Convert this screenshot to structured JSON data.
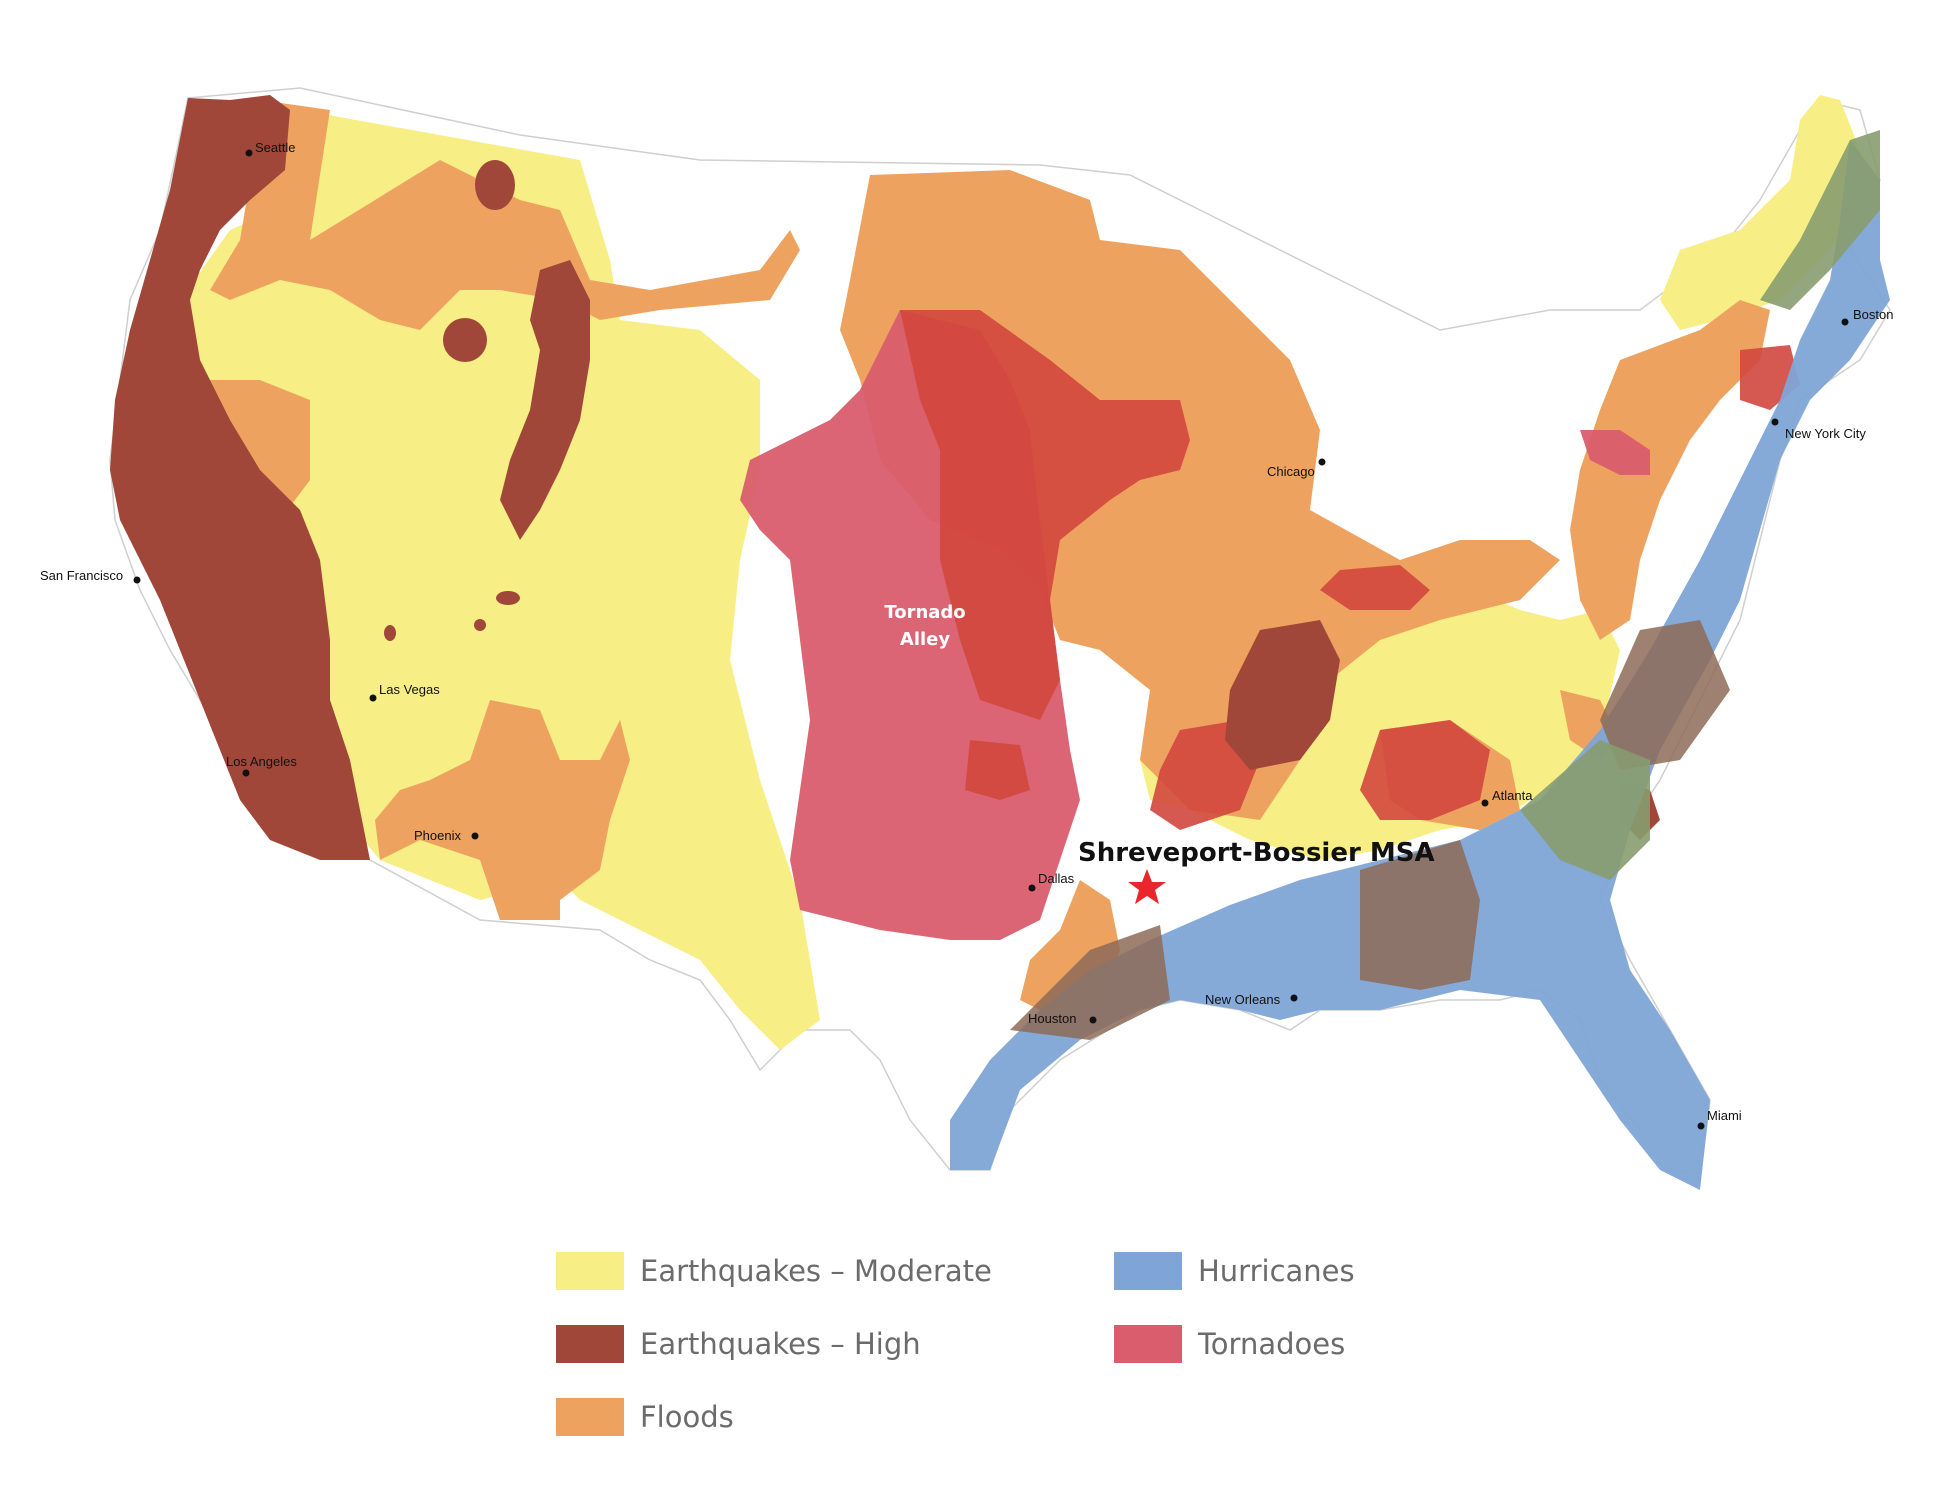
{
  "map": {
    "highlight_label": "Shreveport-Bossier MSA",
    "tornado_label_line1": "Tornado",
    "tornado_label_line2": "Alley",
    "cities": [
      {
        "id": "seattle",
        "name": "Seattle"
      },
      {
        "id": "san-francisco",
        "name": "San Francisco"
      },
      {
        "id": "las-vegas",
        "name": "Las Vegas"
      },
      {
        "id": "los-angeles",
        "name": "Los Angeles"
      },
      {
        "id": "phoenix",
        "name": "Phoenix"
      },
      {
        "id": "dallas",
        "name": "Dallas"
      },
      {
        "id": "houston",
        "name": "Houston"
      },
      {
        "id": "new-orleans",
        "name": "New Orleans"
      },
      {
        "id": "chicago",
        "name": "Chicago"
      },
      {
        "id": "atlanta",
        "name": "Atlanta"
      },
      {
        "id": "miami",
        "name": "Miami"
      },
      {
        "id": "new-york-city",
        "name": "New York City"
      },
      {
        "id": "boston",
        "name": "Boston"
      }
    ],
    "marker": {
      "icon": "star-icon",
      "color": "#e8262b"
    }
  },
  "legend": {
    "earthquakes_moderate": {
      "label": "Earthquakes – Moderate",
      "color": "#f7ef86"
    },
    "earthquakes_high": {
      "label": "Earthquakes – High",
      "color": "#a0473a"
    },
    "floods": {
      "label": "Floods",
      "color": "#eda35f"
    },
    "hurricanes": {
      "label": "Hurricanes",
      "color": "#7fa5d6"
    },
    "tornadoes": {
      "label": "Tornadoes",
      "color": "#d95d6d"
    }
  }
}
